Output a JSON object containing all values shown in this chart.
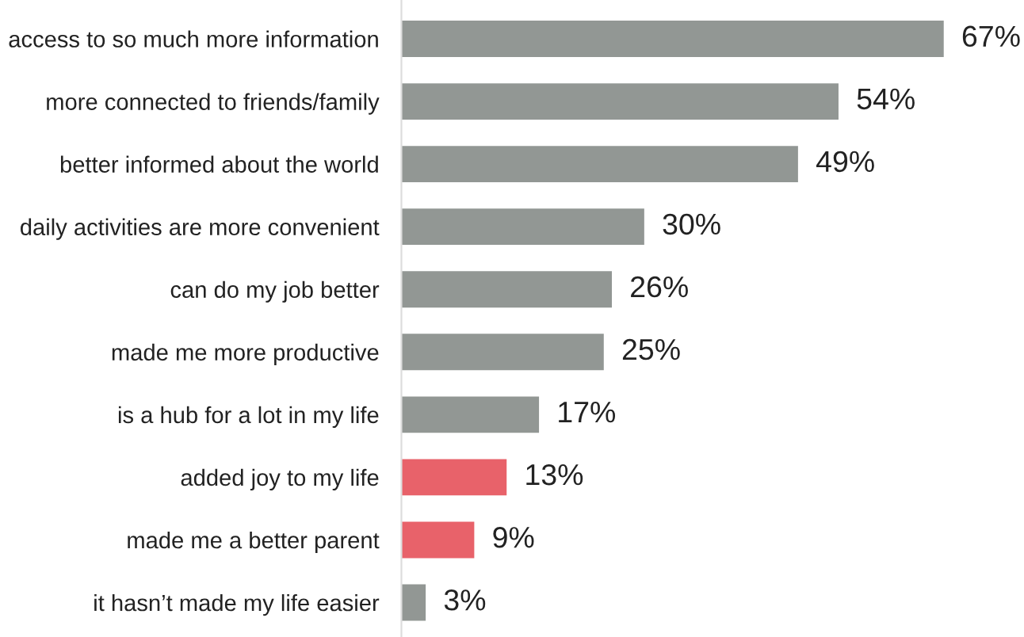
{
  "chart_data": {
    "type": "bar",
    "orientation": "horizontal",
    "categories": [
      "access to so much more information",
      "more connected to friends/family",
      "better informed about the world",
      "daily activities are more convenient",
      "can do my job better",
      "made me more productive",
      "is a hub for a lot in my life",
      "added joy to my life",
      "made me a better parent",
      "it hasn’t made my life easier"
    ],
    "values": [
      67,
      54,
      49,
      30,
      26,
      25,
      17,
      13,
      9,
      3
    ],
    "colors": [
      "#929794",
      "#929794",
      "#929794",
      "#929794",
      "#929794",
      "#929794",
      "#929794",
      "#e8626a",
      "#e8626a",
      "#929794"
    ],
    "value_labels": [
      "67%",
      "54%",
      "49%",
      "30%",
      "26%",
      "25%",
      "17%",
      "13%",
      "9%",
      "3%"
    ],
    "grid": false,
    "legend": false
  }
}
